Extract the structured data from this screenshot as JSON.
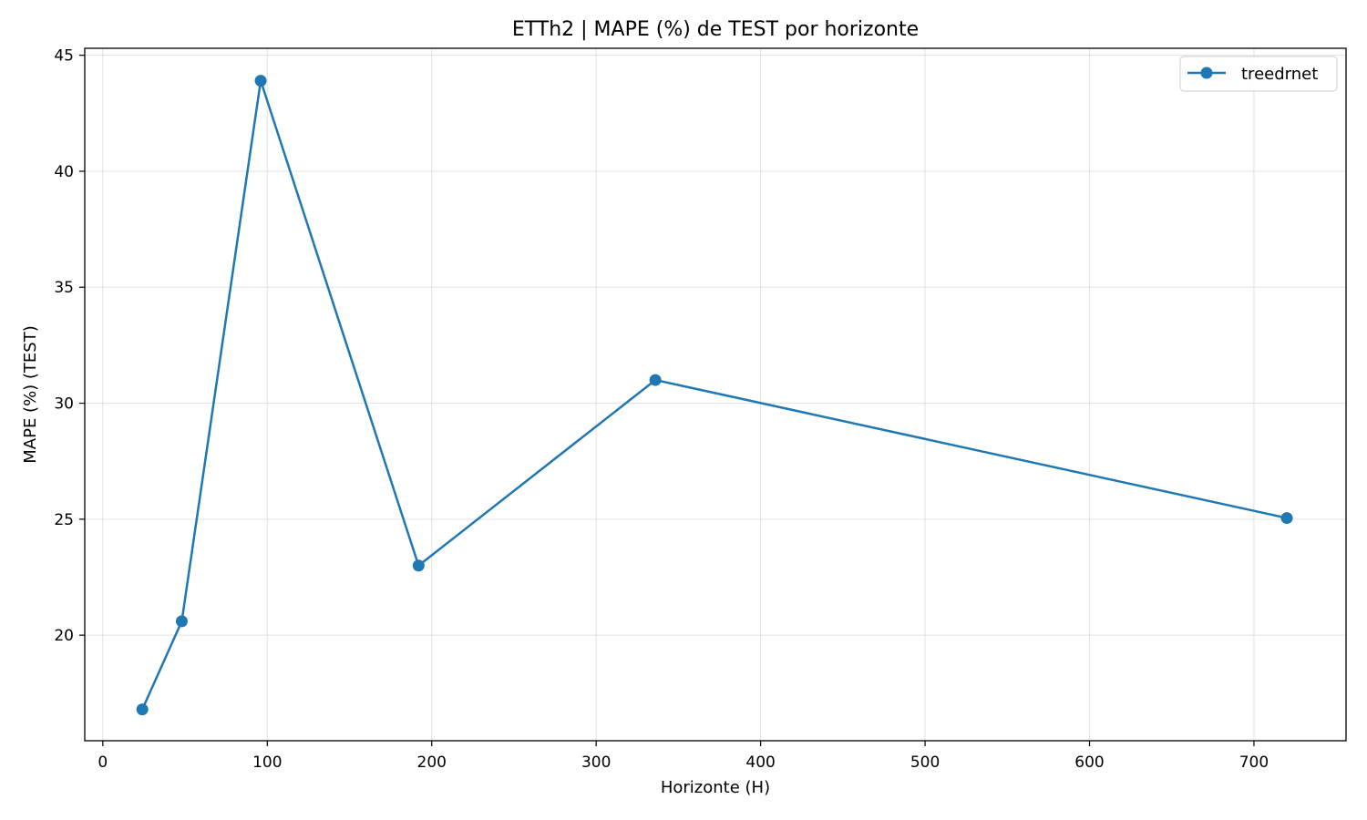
{
  "chart_data": {
    "type": "line",
    "title": "ETTh2 | MAPE (%) de TEST por horizonte",
    "xlabel": "Horizonte (H)",
    "ylabel": "MAPE (%) (TEST)",
    "xlim": [
      -11,
      756
    ],
    "ylim": [
      15.45,
      45.3
    ],
    "xticks": [
      0,
      100,
      200,
      300,
      400,
      500,
      600,
      700
    ],
    "yticks": [
      20,
      25,
      30,
      35,
      40,
      45
    ],
    "grid": true,
    "legend_position": "top-right",
    "series": [
      {
        "name": "treedrnet",
        "color": "#1f77b4",
        "x": [
          24,
          48,
          96,
          192,
          336,
          720
        ],
        "y": [
          16.8,
          20.6,
          43.9,
          23.0,
          31.0,
          25.05
        ]
      }
    ]
  }
}
